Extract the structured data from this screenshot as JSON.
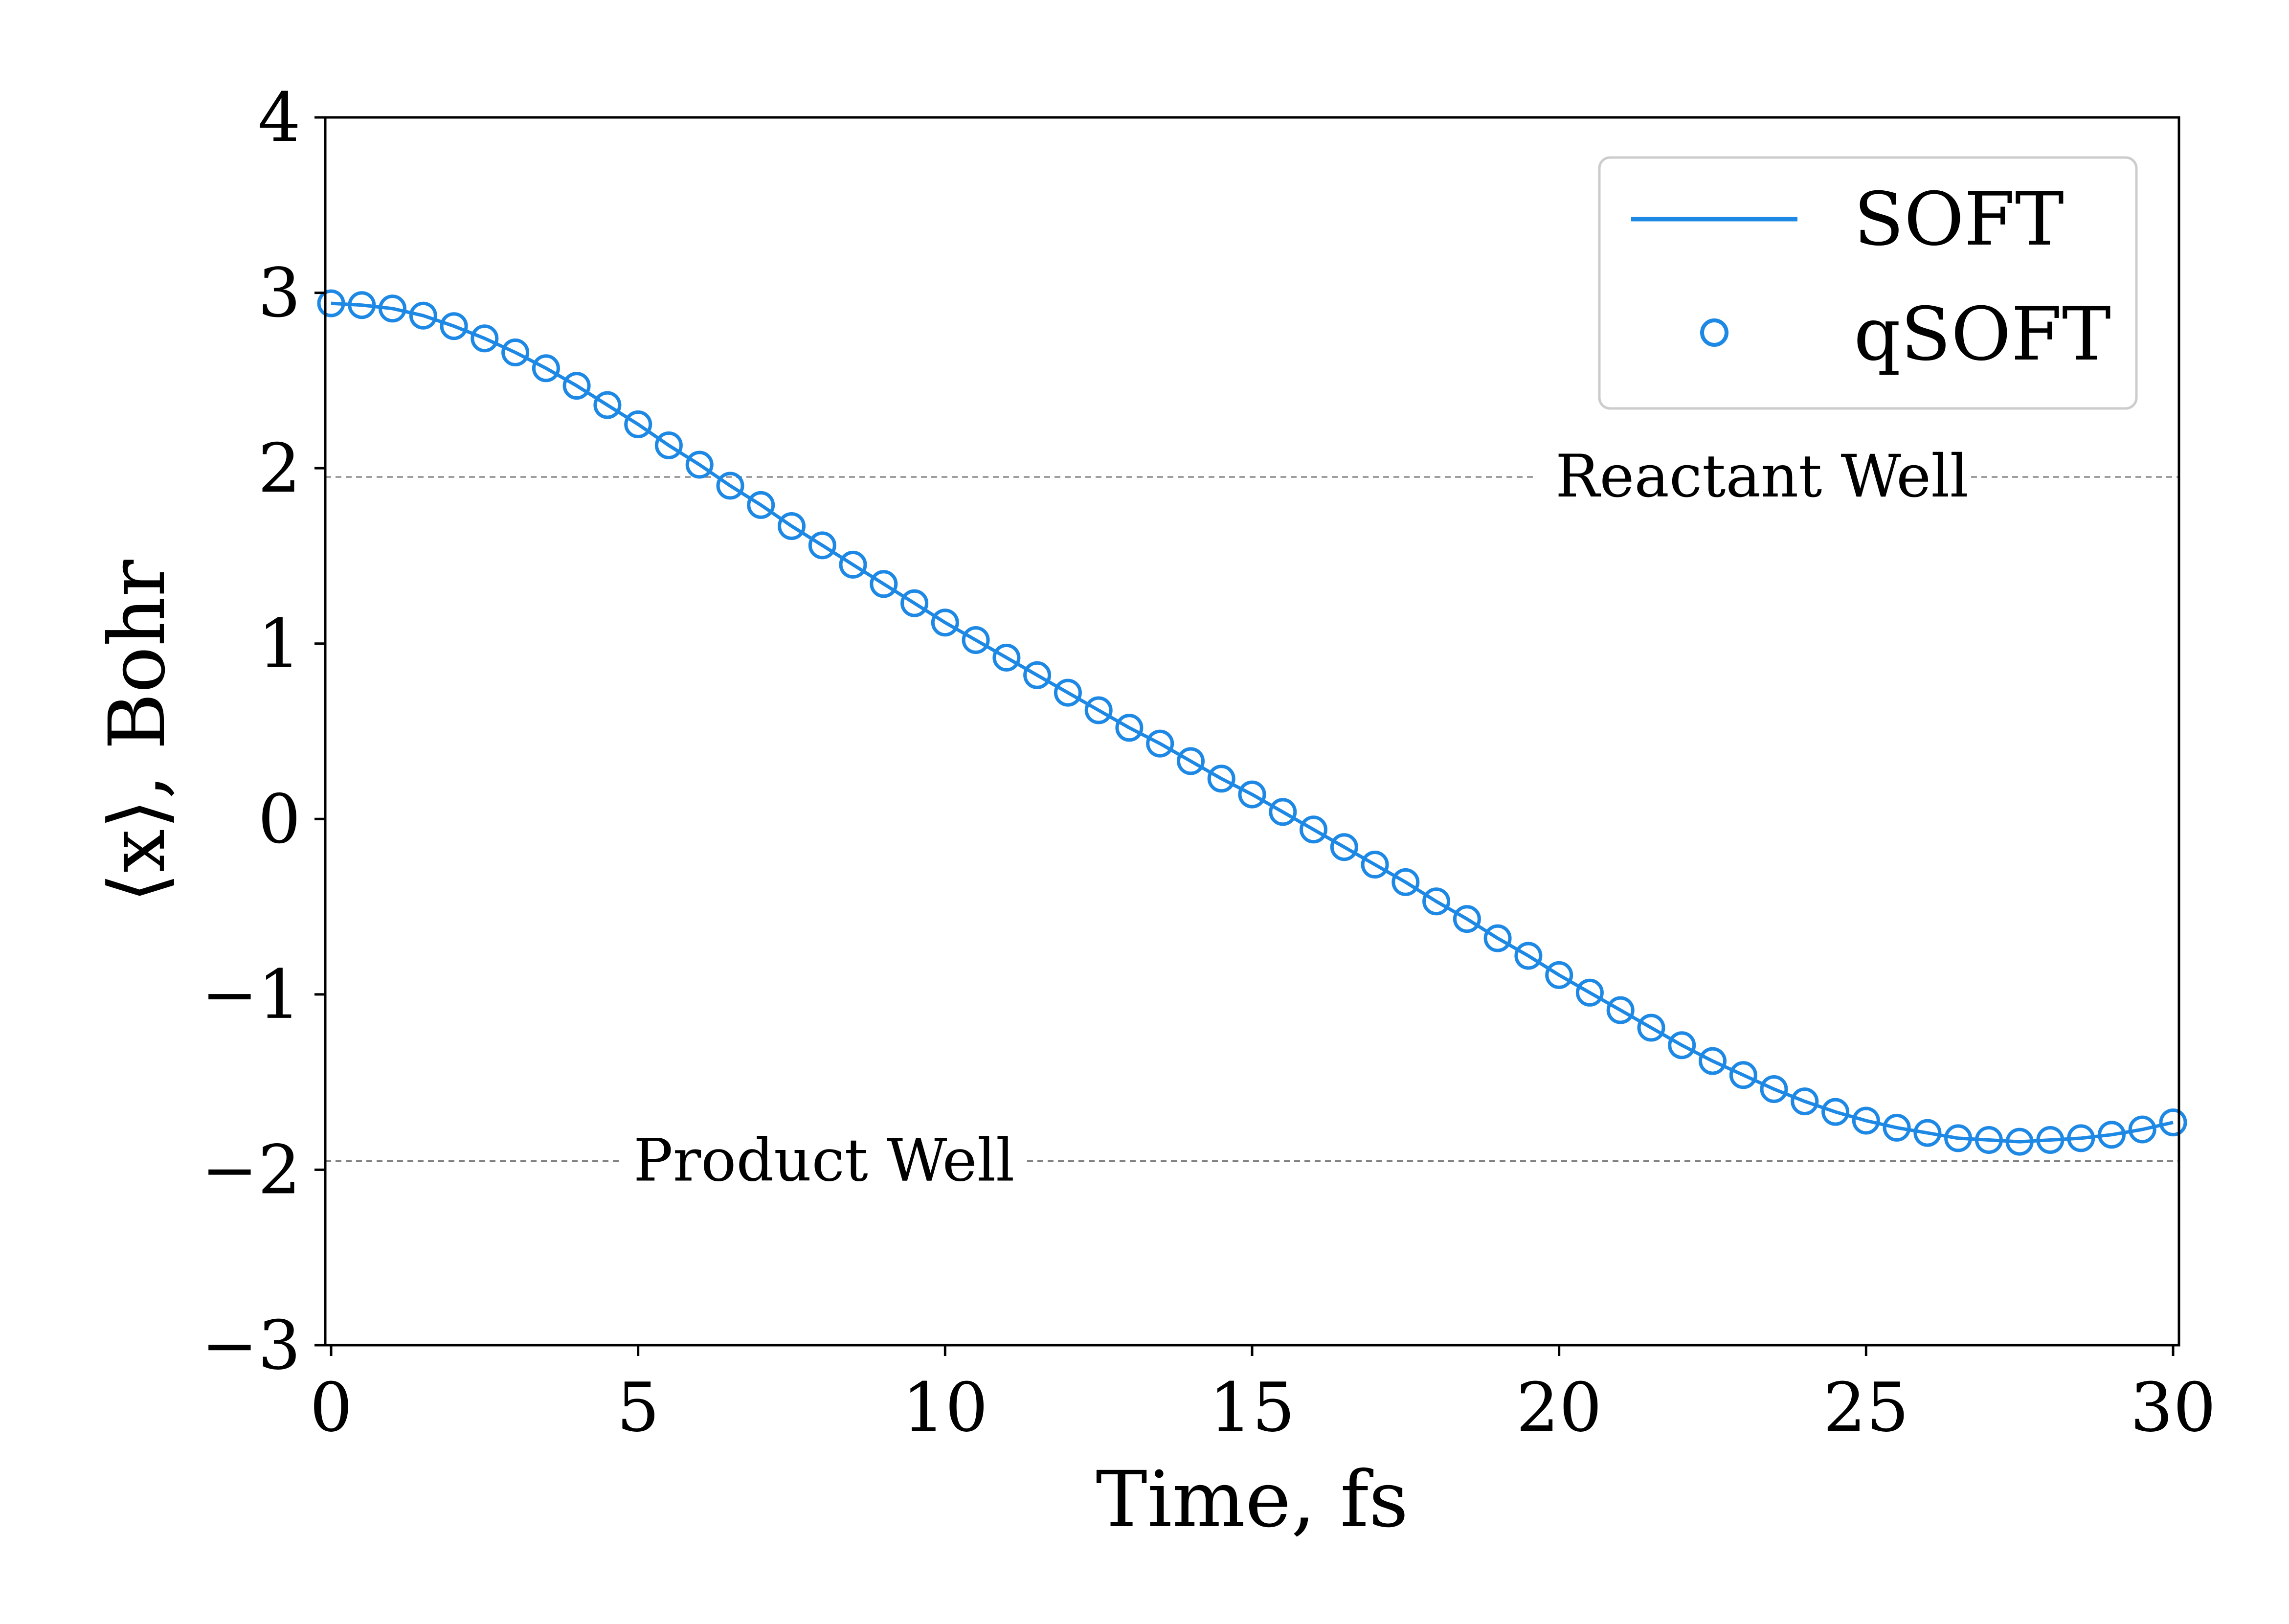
{
  "chart_data": {
    "type": "line",
    "xlabel": "Time, fs",
    "ylabel": "⟨x⟩, Bohr",
    "xlim": [
      0,
      30
    ],
    "ylim": [
      -3,
      4
    ],
    "xticks": [
      0,
      5,
      10,
      15,
      20,
      25,
      30
    ],
    "yticks": [
      -3,
      -2,
      -1,
      0,
      1,
      2,
      3,
      4
    ],
    "xtick_labels": [
      "0",
      "5",
      "10",
      "15",
      "20",
      "25",
      "30"
    ],
    "ytick_labels": [
      "−3",
      "−2",
      "−1",
      "0",
      "1",
      "2",
      "3",
      "4"
    ],
    "grid": false,
    "legend_position": "top-right",
    "series_color": "#1e88e5",
    "series": [
      {
        "name": "SOFT",
        "style": "line",
        "x": [
          0,
          0.5,
          1,
          1.5,
          2,
          2.5,
          3,
          3.5,
          4,
          4.5,
          5,
          5.5,
          6,
          6.5,
          7,
          7.5,
          8,
          8.5,
          9,
          9.5,
          10,
          10.5,
          11,
          11.5,
          12,
          12.5,
          13,
          13.5,
          14,
          14.5,
          15,
          15.5,
          16,
          16.5,
          17,
          17.5,
          18,
          18.5,
          19,
          19.5,
          20,
          20.5,
          21,
          21.5,
          22,
          22.5,
          23,
          23.5,
          24,
          24.5,
          25,
          25.5,
          26,
          26.5,
          27,
          27.5,
          28,
          28.5,
          29,
          29.5,
          30
        ],
        "y": [
          2.94,
          2.93,
          2.91,
          2.87,
          2.81,
          2.74,
          2.66,
          2.57,
          2.47,
          2.36,
          2.25,
          2.13,
          2.02,
          1.9,
          1.79,
          1.67,
          1.56,
          1.45,
          1.34,
          1.23,
          1.12,
          1.02,
          0.92,
          0.82,
          0.72,
          0.62,
          0.52,
          0.43,
          0.33,
          0.23,
          0.14,
          0.04,
          -0.06,
          -0.16,
          -0.26,
          -0.36,
          -0.47,
          -0.57,
          -0.68,
          -0.78,
          -0.89,
          -0.99,
          -1.09,
          -1.19,
          -1.29,
          -1.38,
          -1.46,
          -1.54,
          -1.61,
          -1.67,
          -1.72,
          -1.76,
          -1.79,
          -1.82,
          -1.83,
          -1.84,
          -1.83,
          -1.82,
          -1.8,
          -1.77,
          -1.73
        ]
      },
      {
        "name": "qSOFT",
        "style": "markers",
        "x": [
          0,
          0.5,
          1,
          1.5,
          2,
          2.5,
          3,
          3.5,
          4,
          4.5,
          5,
          5.5,
          6,
          6.5,
          7,
          7.5,
          8,
          8.5,
          9,
          9.5,
          10,
          10.5,
          11,
          11.5,
          12,
          12.5,
          13,
          13.5,
          14,
          14.5,
          15,
          15.5,
          16,
          16.5,
          17,
          17.5,
          18,
          18.5,
          19,
          19.5,
          20,
          20.5,
          21,
          21.5,
          22,
          22.5,
          23,
          23.5,
          24,
          24.5,
          25,
          25.5,
          26,
          26.5,
          27,
          27.5,
          28,
          28.5,
          29,
          29.5,
          30
        ],
        "y": [
          2.94,
          2.93,
          2.91,
          2.87,
          2.81,
          2.74,
          2.66,
          2.57,
          2.47,
          2.36,
          2.25,
          2.13,
          2.02,
          1.9,
          1.79,
          1.67,
          1.56,
          1.45,
          1.34,
          1.23,
          1.12,
          1.02,
          0.92,
          0.82,
          0.72,
          0.62,
          0.52,
          0.43,
          0.33,
          0.23,
          0.14,
          0.04,
          -0.06,
          -0.16,
          -0.26,
          -0.36,
          -0.47,
          -0.57,
          -0.68,
          -0.78,
          -0.89,
          -0.99,
          -1.09,
          -1.19,
          -1.29,
          -1.38,
          -1.46,
          -1.54,
          -1.61,
          -1.67,
          -1.72,
          -1.76,
          -1.79,
          -1.82,
          -1.83,
          -1.84,
          -1.83,
          -1.82,
          -1.8,
          -1.77,
          -1.73
        ]
      }
    ],
    "reference_lines": [
      {
        "label": "Reactant Well",
        "y": 1.95,
        "color": "#808080"
      },
      {
        "label": "Product Well",
        "y": -1.95,
        "color": "#808080"
      }
    ]
  }
}
